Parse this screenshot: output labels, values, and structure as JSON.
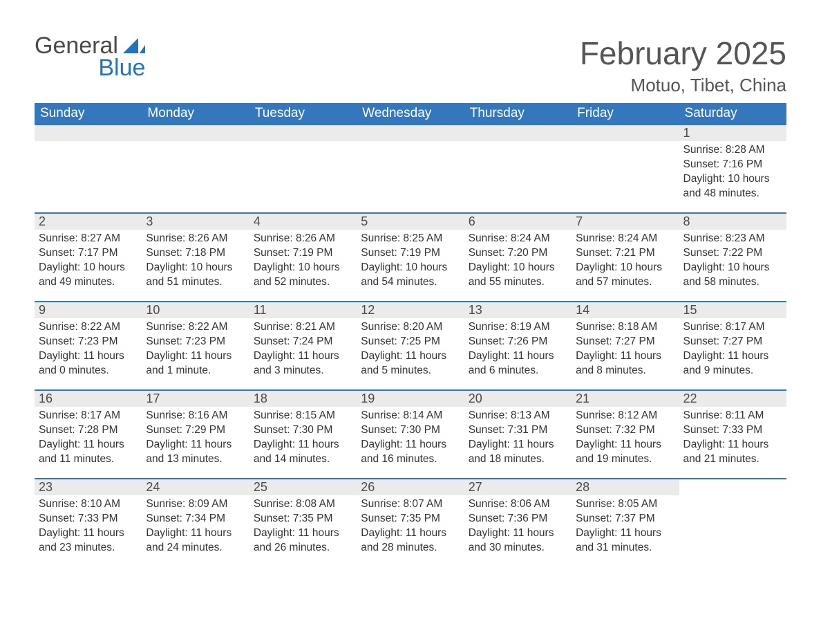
{
  "logo": {
    "word1": "General",
    "word2": "Blue"
  },
  "title": "February 2025",
  "location": "Motuo, Tibet, China",
  "colors": {
    "header_bg": "#3477BD",
    "header_text": "#ffffff",
    "row_border": "#3477BD",
    "daynum_bg": "#ebebeb",
    "text": "#333333",
    "logo_blue": "#1f74c4",
    "page_bg": "#ffffff"
  },
  "weekdays": [
    "Sunday",
    "Monday",
    "Tuesday",
    "Wednesday",
    "Thursday",
    "Friday",
    "Saturday"
  ],
  "weeks": [
    [
      null,
      null,
      null,
      null,
      null,
      null,
      {
        "day": "1",
        "sunrise": "Sunrise: 8:28 AM",
        "sunset": "Sunset: 7:16 PM",
        "daylight1": "Daylight: 10 hours",
        "daylight2": "and 48 minutes."
      }
    ],
    [
      {
        "day": "2",
        "sunrise": "Sunrise: 8:27 AM",
        "sunset": "Sunset: 7:17 PM",
        "daylight1": "Daylight: 10 hours",
        "daylight2": "and 49 minutes."
      },
      {
        "day": "3",
        "sunrise": "Sunrise: 8:26 AM",
        "sunset": "Sunset: 7:18 PM",
        "daylight1": "Daylight: 10 hours",
        "daylight2": "and 51 minutes."
      },
      {
        "day": "4",
        "sunrise": "Sunrise: 8:26 AM",
        "sunset": "Sunset: 7:19 PM",
        "daylight1": "Daylight: 10 hours",
        "daylight2": "and 52 minutes."
      },
      {
        "day": "5",
        "sunrise": "Sunrise: 8:25 AM",
        "sunset": "Sunset: 7:19 PM",
        "daylight1": "Daylight: 10 hours",
        "daylight2": "and 54 minutes."
      },
      {
        "day": "6",
        "sunrise": "Sunrise: 8:24 AM",
        "sunset": "Sunset: 7:20 PM",
        "daylight1": "Daylight: 10 hours",
        "daylight2": "and 55 minutes."
      },
      {
        "day": "7",
        "sunrise": "Sunrise: 8:24 AM",
        "sunset": "Sunset: 7:21 PM",
        "daylight1": "Daylight: 10 hours",
        "daylight2": "and 57 minutes."
      },
      {
        "day": "8",
        "sunrise": "Sunrise: 8:23 AM",
        "sunset": "Sunset: 7:22 PM",
        "daylight1": "Daylight: 10 hours",
        "daylight2": "and 58 minutes."
      }
    ],
    [
      {
        "day": "9",
        "sunrise": "Sunrise: 8:22 AM",
        "sunset": "Sunset: 7:23 PM",
        "daylight1": "Daylight: 11 hours",
        "daylight2": "and 0 minutes."
      },
      {
        "day": "10",
        "sunrise": "Sunrise: 8:22 AM",
        "sunset": "Sunset: 7:23 PM",
        "daylight1": "Daylight: 11 hours",
        "daylight2": "and 1 minute."
      },
      {
        "day": "11",
        "sunrise": "Sunrise: 8:21 AM",
        "sunset": "Sunset: 7:24 PM",
        "daylight1": "Daylight: 11 hours",
        "daylight2": "and 3 minutes."
      },
      {
        "day": "12",
        "sunrise": "Sunrise: 8:20 AM",
        "sunset": "Sunset: 7:25 PM",
        "daylight1": "Daylight: 11 hours",
        "daylight2": "and 5 minutes."
      },
      {
        "day": "13",
        "sunrise": "Sunrise: 8:19 AM",
        "sunset": "Sunset: 7:26 PM",
        "daylight1": "Daylight: 11 hours",
        "daylight2": "and 6 minutes."
      },
      {
        "day": "14",
        "sunrise": "Sunrise: 8:18 AM",
        "sunset": "Sunset: 7:27 PM",
        "daylight1": "Daylight: 11 hours",
        "daylight2": "and 8 minutes."
      },
      {
        "day": "15",
        "sunrise": "Sunrise: 8:17 AM",
        "sunset": "Sunset: 7:27 PM",
        "daylight1": "Daylight: 11 hours",
        "daylight2": "and 9 minutes."
      }
    ],
    [
      {
        "day": "16",
        "sunrise": "Sunrise: 8:17 AM",
        "sunset": "Sunset: 7:28 PM",
        "daylight1": "Daylight: 11 hours",
        "daylight2": "and 11 minutes."
      },
      {
        "day": "17",
        "sunrise": "Sunrise: 8:16 AM",
        "sunset": "Sunset: 7:29 PM",
        "daylight1": "Daylight: 11 hours",
        "daylight2": "and 13 minutes."
      },
      {
        "day": "18",
        "sunrise": "Sunrise: 8:15 AM",
        "sunset": "Sunset: 7:30 PM",
        "daylight1": "Daylight: 11 hours",
        "daylight2": "and 14 minutes."
      },
      {
        "day": "19",
        "sunrise": "Sunrise: 8:14 AM",
        "sunset": "Sunset: 7:30 PM",
        "daylight1": "Daylight: 11 hours",
        "daylight2": "and 16 minutes."
      },
      {
        "day": "20",
        "sunrise": "Sunrise: 8:13 AM",
        "sunset": "Sunset: 7:31 PM",
        "daylight1": "Daylight: 11 hours",
        "daylight2": "and 18 minutes."
      },
      {
        "day": "21",
        "sunrise": "Sunrise: 8:12 AM",
        "sunset": "Sunset: 7:32 PM",
        "daylight1": "Daylight: 11 hours",
        "daylight2": "and 19 minutes."
      },
      {
        "day": "22",
        "sunrise": "Sunrise: 8:11 AM",
        "sunset": "Sunset: 7:33 PM",
        "daylight1": "Daylight: 11 hours",
        "daylight2": "and 21 minutes."
      }
    ],
    [
      {
        "day": "23",
        "sunrise": "Sunrise: 8:10 AM",
        "sunset": "Sunset: 7:33 PM",
        "daylight1": "Daylight: 11 hours",
        "daylight2": "and 23 minutes."
      },
      {
        "day": "24",
        "sunrise": "Sunrise: 8:09 AM",
        "sunset": "Sunset: 7:34 PM",
        "daylight1": "Daylight: 11 hours",
        "daylight2": "and 24 minutes."
      },
      {
        "day": "25",
        "sunrise": "Sunrise: 8:08 AM",
        "sunset": "Sunset: 7:35 PM",
        "daylight1": "Daylight: 11 hours",
        "daylight2": "and 26 minutes."
      },
      {
        "day": "26",
        "sunrise": "Sunrise: 8:07 AM",
        "sunset": "Sunset: 7:35 PM",
        "daylight1": "Daylight: 11 hours",
        "daylight2": "and 28 minutes."
      },
      {
        "day": "27",
        "sunrise": "Sunrise: 8:06 AM",
        "sunset": "Sunset: 7:36 PM",
        "daylight1": "Daylight: 11 hours",
        "daylight2": "and 30 minutes."
      },
      {
        "day": "28",
        "sunrise": "Sunrise: 8:05 AM",
        "sunset": "Sunset: 7:37 PM",
        "daylight1": "Daylight: 11 hours",
        "daylight2": "and 31 minutes."
      },
      null
    ]
  ]
}
